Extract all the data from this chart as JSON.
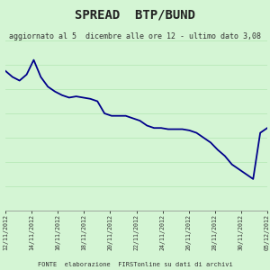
{
  "title": "SPREAD  BTP/BUND",
  "subtitle": "aggiornato al 5  dicembre alle ore 12 - ultimo dato 3,08",
  "footer": "FONTE  elaborazione  FIRSTonline su dati di archivi",
  "background_color": "#d4f5d4",
  "plot_bg_color": "#d4f5d4",
  "line_color": "#00008B",
  "line_width": 1.3,
  "x_labels": [
    "12/11/2012",
    "14/11/2012",
    "16/11/2012",
    "18/11/2012",
    "20/11/2012",
    "22/11/2012",
    "24/11/2012",
    "26/11/2012",
    "28/11/2012",
    "30/11/2012",
    "05/12/2012"
  ],
  "y_values": [
    3.55,
    3.5,
    3.47,
    3.52,
    3.64,
    3.5,
    3.42,
    3.38,
    3.35,
    3.33,
    3.34,
    3.33,
    3.32,
    3.3,
    3.2,
    3.18,
    3.18,
    3.18,
    3.16,
    3.14,
    3.1,
    3.08,
    3.08,
    3.07,
    3.07,
    3.07,
    3.06,
    3.04,
    3.0,
    2.96,
    2.9,
    2.85,
    2.78,
    2.74,
    2.7,
    2.66,
    3.04,
    3.08
  ],
  "ylim_min": 2.4,
  "ylim_max": 3.8,
  "ytick_interval": 0.2,
  "title_fontsize": 10,
  "subtitle_fontsize": 6.0,
  "footer_fontsize": 5.0,
  "xtick_fontsize": 4.8,
  "ytick_fontsize": 5.5,
  "grid_color": "#b8e8b8",
  "grid_linewidth": 0.6,
  "title_color": "#222222",
  "text_color": "#333333"
}
